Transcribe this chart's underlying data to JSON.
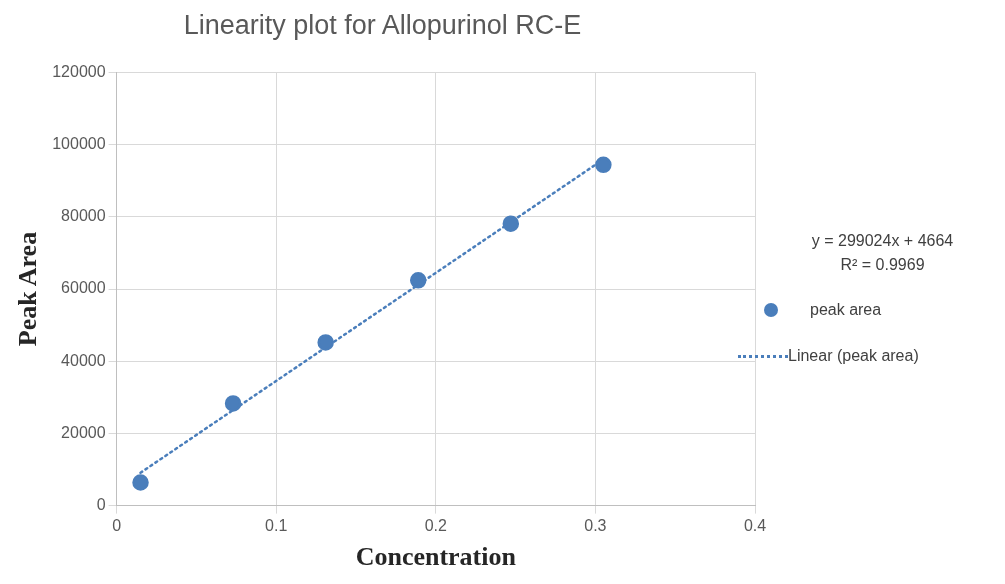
{
  "chart_data": {
    "type": "scatter",
    "title": "Linearity plot for Allopurinol RC-E",
    "xlabel": "Concentration",
    "ylabel": "Peak Area",
    "xlim": [
      0,
      0.4
    ],
    "xticks": [
      0,
      0.1,
      0.2,
      0.3,
      0.4
    ],
    "ylim": [
      0,
      120000
    ],
    "yticks": [
      0,
      20000,
      40000,
      60000,
      80000,
      100000,
      120000
    ],
    "grid": true,
    "legend": "right",
    "marker": "circle",
    "series": [
      {
        "name": "peak area",
        "type": "scatter",
        "color": "#4a7ebb",
        "x": [
          0.015,
          0.073,
          0.131,
          0.189,
          0.247,
          0.305
        ],
        "values": [
          6400,
          28300,
          45200,
          62400,
          78100,
          94400
        ]
      },
      {
        "name": "Linear (peak area)",
        "type": "line",
        "color": "#4a7ebb",
        "line_style": "dotted",
        "marker": "none",
        "x": [
          0.015,
          0.305
        ],
        "values": [
          9100,
          95900
        ]
      }
    ],
    "annotations": [
      "y = 299024x + 4664",
      "R² = 0.9969"
    ]
  }
}
